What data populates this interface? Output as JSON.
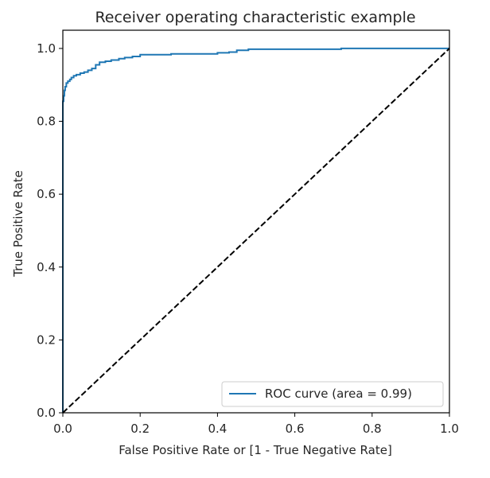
{
  "chart_data": {
    "type": "line",
    "title": "Receiver operating characteristic example",
    "xlabel": "False Positive Rate or [1 - True Negative Rate]",
    "ylabel": "True Positive Rate",
    "xlim": [
      0.0,
      1.0
    ],
    "ylim": [
      0.0,
      1.05
    ],
    "x_ticks": [
      0.0,
      0.2,
      0.4,
      0.6,
      0.8,
      1.0
    ],
    "x_tick_labels": [
      "0.0",
      "0.2",
      "0.4",
      "0.6",
      "0.8",
      "1.0"
    ],
    "y_ticks": [
      0.0,
      0.2,
      0.4,
      0.6,
      0.8,
      1.0
    ],
    "y_tick_labels": [
      "0.0",
      "0.2",
      "0.4",
      "0.6",
      "0.8",
      "1.0"
    ],
    "grid": false,
    "legend_position": "lower-right",
    "series": [
      {
        "name": "ROC curve (area = 0.99)",
        "color": "#1f77b4",
        "style": "solid",
        "x": [
          0.0,
          0.0,
          0.002,
          0.002,
          0.004,
          0.004,
          0.006,
          0.006,
          0.009,
          0.009,
          0.013,
          0.013,
          0.018,
          0.018,
          0.022,
          0.022,
          0.028,
          0.028,
          0.035,
          0.035,
          0.045,
          0.045,
          0.055,
          0.055,
          0.065,
          0.065,
          0.075,
          0.075,
          0.085,
          0.085,
          0.095,
          0.095,
          0.11,
          0.11,
          0.125,
          0.125,
          0.145,
          0.145,
          0.16,
          0.16,
          0.18,
          0.18,
          0.2,
          0.2,
          0.28,
          0.28,
          0.4,
          0.4,
          0.43,
          0.43,
          0.45,
          0.45,
          0.48,
          0.48,
          0.72,
          0.72,
          1.0
        ],
        "y": [
          0.0,
          0.855,
          0.855,
          0.87,
          0.87,
          0.885,
          0.885,
          0.895,
          0.895,
          0.905,
          0.905,
          0.91,
          0.91,
          0.915,
          0.915,
          0.92,
          0.92,
          0.925,
          0.925,
          0.928,
          0.928,
          0.932,
          0.932,
          0.935,
          0.935,
          0.94,
          0.94,
          0.945,
          0.945,
          0.955,
          0.955,
          0.962,
          0.962,
          0.965,
          0.965,
          0.968,
          0.968,
          0.972,
          0.972,
          0.975,
          0.975,
          0.978,
          0.978,
          0.983,
          0.983,
          0.985,
          0.985,
          0.988,
          0.988,
          0.99,
          0.99,
          0.995,
          0.995,
          0.998,
          0.998,
          1.0,
          1.0
        ]
      },
      {
        "color": "#000000",
        "style": "dashed",
        "x": [
          0.0,
          1.0
        ],
        "y": [
          0.0,
          1.0
        ]
      }
    ]
  }
}
